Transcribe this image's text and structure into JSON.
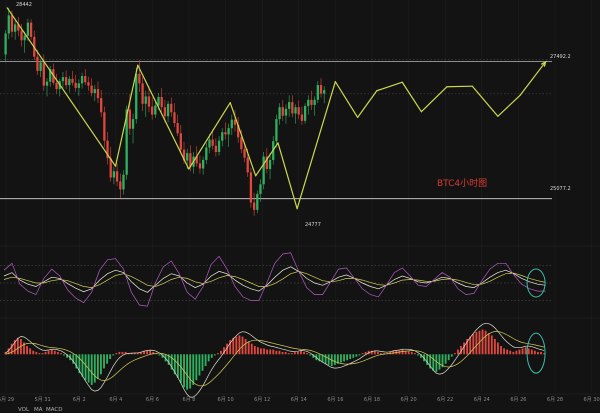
{
  "colors": {
    "background": "#131313",
    "up_candle": "#2fb15f",
    "down_candle": "#e0483e",
    "pattern_line": "#ccd94a",
    "support_resistance": "#d8d8d8",
    "macd_dif": "#e0e0d0",
    "macd_dea": "#d5cf5a",
    "kdj_k": "#f0f0e0",
    "kdj_d": "#d5cf5a",
    "kdj_j": "#b45cc4",
    "hist_up": "#e0483e",
    "hist_down": "#2fb15f",
    "annotation_circle": "#3cbca4",
    "watermark": "#d83a36"
  },
  "watermark": "BTC4小时图",
  "price_labels": {
    "high": "28442",
    "resistance": "27492.2",
    "support": "25077.2",
    "low": "24777"
  },
  "bottom_tabs": [
    "VOL",
    "MA",
    "MACD"
  ],
  "chart_data": {
    "type": "candlestick",
    "title": "",
    "x_ticks": [
      "5月 29",
      "5月 31",
      "6月 2",
      "6月 4",
      "6月 6",
      "6月 8",
      "6月 10",
      "6月 12",
      "6月 14",
      "6月 16",
      "6月 18",
      "6月 20",
      "6月 22",
      "6月 24",
      "6月 26",
      "6月 28",
      "6月 30"
    ],
    "ylim": [
      24560,
      28580
    ],
    "levels": {
      "resistance": 27492.2,
      "support": 25077.2,
      "dotted": [
        27530,
        26925
      ]
    },
    "marked_extremes": {
      "high": 28442,
      "low": 24777
    },
    "ohlc": [
      [
        27620,
        28050,
        27480,
        27990
      ],
      [
        27990,
        28442,
        27890,
        28310
      ],
      [
        28310,
        28390,
        27920,
        28020
      ],
      [
        28020,
        28220,
        27880,
        28150
      ],
      [
        28150,
        28280,
        27940,
        28040
      ],
      [
        28040,
        28160,
        27760,
        27870
      ],
      [
        27870,
        28020,
        27650,
        27950
      ],
      [
        27950,
        28250,
        27860,
        28180
      ],
      [
        28180,
        28240,
        27880,
        27930
      ],
      [
        27930,
        28040,
        27520,
        27580
      ],
      [
        27580,
        27700,
        27260,
        27330
      ],
      [
        27330,
        27540,
        27220,
        27480
      ],
      [
        27480,
        27620,
        26980,
        27070
      ],
      [
        27070,
        27200,
        26880,
        27140
      ],
      [
        27140,
        27420,
        27050,
        27360
      ],
      [
        27360,
        27460,
        27080,
        27120
      ],
      [
        27120,
        27280,
        26930,
        27010
      ],
      [
        27010,
        27190,
        26880,
        27150
      ],
      [
        27150,
        27310,
        27030,
        27220
      ],
      [
        27220,
        27340,
        27010,
        27080
      ],
      [
        27080,
        27240,
        26950,
        27190
      ],
      [
        27190,
        27330,
        27070,
        27120
      ],
      [
        27120,
        27260,
        26960,
        27030
      ],
      [
        27030,
        27180,
        26890,
        27110
      ],
      [
        27110,
        27300,
        27020,
        27240
      ],
      [
        27240,
        27360,
        27080,
        27130
      ],
      [
        27130,
        27230,
        26980,
        27070
      ],
      [
        27070,
        27200,
        26880,
        26940
      ],
      [
        26940,
        27080,
        26800,
        27010
      ],
      [
        27010,
        27140,
        26760,
        26850
      ],
      [
        26850,
        26990,
        26520,
        26600
      ],
      [
        26600,
        26700,
        25980,
        26100
      ],
      [
        26100,
        26250,
        25680,
        25790
      ],
      [
        25790,
        25990,
        25380,
        25450
      ],
      [
        25450,
        25640,
        25330,
        25560
      ],
      [
        25560,
        25700,
        25300,
        25380
      ],
      [
        25380,
        25520,
        25080,
        25240
      ],
      [
        25240,
        25580,
        25150,
        25500
      ],
      [
        25500,
        26720,
        25410,
        26650
      ],
      [
        26650,
        26930,
        26200,
        26310
      ],
      [
        26310,
        26580,
        26050,
        26480
      ],
      [
        26480,
        27380,
        26400,
        27280
      ],
      [
        27280,
        27520,
        26960,
        27110
      ],
      [
        27110,
        27230,
        26620,
        26750
      ],
      [
        26750,
        26980,
        26520,
        26880
      ],
      [
        26880,
        27060,
        26600,
        26700
      ],
      [
        26700,
        26860,
        26470,
        26560
      ],
      [
        26560,
        26780,
        26500,
        26720
      ],
      [
        26720,
        26940,
        26640,
        26870
      ],
      [
        26870,
        27030,
        26610,
        26690
      ],
      [
        26690,
        26820,
        26420,
        26530
      ],
      [
        26530,
        26800,
        26420,
        26750
      ],
      [
        26750,
        26860,
        26520,
        26600
      ],
      [
        26600,
        26760,
        26340,
        26410
      ],
      [
        26410,
        26560,
        26180,
        26230
      ],
      [
        26230,
        26380,
        25860,
        25940
      ],
      [
        25940,
        26080,
        25690,
        25750
      ],
      [
        25750,
        25960,
        25600,
        25880
      ],
      [
        25880,
        26020,
        25560,
        25640
      ],
      [
        25640,
        25900,
        25520,
        25820
      ],
      [
        25820,
        26000,
        25640,
        25700
      ],
      [
        25700,
        25840,
        25520,
        25610
      ],
      [
        25610,
        25820,
        25500,
        25760
      ],
      [
        25760,
        26060,
        25690,
        25980
      ],
      [
        25980,
        26220,
        25880,
        26120
      ],
      [
        26120,
        26300,
        25940,
        26010
      ],
      [
        26010,
        26140,
        25820,
        25900
      ],
      [
        25900,
        26180,
        25840,
        26100
      ],
      [
        26100,
        26320,
        26000,
        26250
      ],
      [
        26250,
        26420,
        26120,
        26210
      ],
      [
        26210,
        26400,
        25990,
        26320
      ],
      [
        26320,
        26560,
        26200,
        26470
      ],
      [
        26470,
        26640,
        26260,
        26380
      ],
      [
        26380,
        26520,
        26060,
        26160
      ],
      [
        26160,
        26290,
        25880,
        25950
      ],
      [
        25950,
        26060,
        25720,
        25800
      ],
      [
        25800,
        25960,
        25460,
        25540
      ],
      [
        25540,
        25620,
        24920,
        25010
      ],
      [
        25010,
        25180,
        24777,
        24880
      ],
      [
        24880,
        25220,
        24820,
        25160
      ],
      [
        25160,
        25420,
        25020,
        25330
      ],
      [
        25330,
        25900,
        25240,
        25820
      ],
      [
        25820,
        25970,
        25520,
        25600
      ],
      [
        25600,
        25880,
        25420,
        25760
      ],
      [
        25760,
        26180,
        25680,
        26090
      ],
      [
        26090,
        26560,
        25980,
        26480
      ],
      [
        26480,
        26760,
        26380,
        26690
      ],
      [
        26690,
        26820,
        26450,
        26540
      ],
      [
        26540,
        26740,
        26400,
        26660
      ],
      [
        26660,
        26900,
        26520,
        26780
      ],
      [
        26780,
        26900,
        26510,
        26580
      ],
      [
        26580,
        26740,
        26400,
        26690
      ],
      [
        26690,
        26810,
        26480,
        26560
      ],
      [
        26560,
        26700,
        26380,
        26450
      ],
      [
        26450,
        26760,
        26400,
        26710
      ],
      [
        26710,
        26900,
        26560,
        26820
      ],
      [
        26820,
        26980,
        26640,
        26730
      ],
      [
        26730,
        26880,
        26540,
        26820
      ],
      [
        26820,
        27150,
        26760,
        27080
      ],
      [
        27080,
        27200,
        26860,
        26930
      ],
      [
        26930,
        27060,
        26760,
        26990
      ]
    ],
    "pattern_path": [
      {
        "x": 1,
        "y": 28442
      },
      {
        "x": 35,
        "y": 25650
      },
      {
        "x": 42,
        "y": 27430
      },
      {
        "x": 58,
        "y": 25600
      },
      {
        "x": 71,
        "y": 26770
      },
      {
        "x": 79,
        "y": 25480
      },
      {
        "x": 86,
        "y": 26060
      },
      {
        "x": 92,
        "y": 24900
      },
      {
        "x": 104,
        "y": 27140
      },
      {
        "x": 111,
        "y": 26510
      },
      {
        "x": 117,
        "y": 26980
      },
      {
        "x": 125,
        "y": 27130
      },
      {
        "x": 131,
        "y": 26610
      },
      {
        "x": 139,
        "y": 27050
      },
      {
        "x": 147,
        "y": 27060
      },
      {
        "x": 155,
        "y": 26530
      },
      {
        "x": 162,
        "y": 26900
      },
      {
        "x": 170,
        "y": 27490
      }
    ],
    "pattern_scale": {
      "x_max": 172
    },
    "kdj_panel": {
      "series": [
        {
          "key": "k",
          "values": [
            62,
            68,
            55,
            48,
            44,
            52,
            60,
            58,
            49,
            41,
            35,
            40,
            55,
            66,
            72,
            68,
            52,
            40,
            34,
            46,
            58,
            66,
            62,
            50,
            42,
            48,
            62,
            70,
            66,
            55,
            46,
            40,
            36,
            46,
            60,
            72,
            78,
            70,
            58,
            50,
            46,
            52,
            60,
            64,
            58,
            50,
            44,
            40,
            46,
            56,
            62,
            58,
            52,
            50,
            54,
            60,
            58,
            50,
            44,
            42,
            50,
            60,
            68,
            72,
            66,
            58,
            52,
            48,
            46
          ]
        },
        {
          "key": "d",
          "values": [
            56,
            60,
            58,
            54,
            50,
            50,
            54,
            56,
            54,
            49,
            44,
            42,
            47,
            55,
            63,
            66,
            61,
            54,
            46,
            44,
            49,
            56,
            60,
            58,
            52,
            49,
            53,
            59,
            63,
            61,
            56,
            50,
            44,
            44,
            49,
            57,
            66,
            70,
            66,
            60,
            54,
            52,
            54,
            58,
            58,
            55,
            51,
            47,
            46,
            50,
            55,
            56,
            55,
            53,
            53,
            56,
            57,
            55,
            51,
            47,
            48,
            53,
            60,
            66,
            67,
            63,
            58,
            54,
            51
          ]
        },
        {
          "key": "j",
          "values": [
            72,
            84,
            48,
            36,
            30,
            58,
            74,
            62,
            38,
            24,
            16,
            34,
            72,
            90,
            92,
            74,
            34,
            12,
            10,
            50,
            78,
            88,
            66,
            34,
            22,
            44,
            82,
            96,
            74,
            44,
            26,
            20,
            20,
            50,
            84,
            100,
            102,
            70,
            42,
            30,
            30,
            52,
            74,
            76,
            58,
            40,
            30,
            26,
            46,
            68,
            76,
            62,
            46,
            44,
            56,
            68,
            60,
            40,
            30,
            32,
            54,
            74,
            84,
            84,
            64,
            48,
            40,
            36,
            36
          ]
        }
      ],
      "range": [
        0,
        100
      ],
      "reference_lines": [
        80,
        50,
        20
      ]
    },
    "macd_panel": {
      "histogram": [
        2,
        5,
        9,
        12,
        14,
        13,
        10,
        7,
        5,
        3,
        2,
        1,
        1,
        2,
        3,
        4,
        3,
        2,
        1,
        -1,
        -3,
        -5,
        -8,
        -12,
        -16,
        -19,
        -22,
        -24,
        -26,
        -24,
        -21,
        -17,
        -12,
        -8,
        -4,
        -1,
        1,
        2,
        2,
        2,
        1,
        1,
        1,
        1,
        2,
        3,
        3,
        3,
        2,
        1,
        -1,
        -3,
        -6,
        -9,
        -13,
        -17,
        -20,
        -24,
        -28,
        -30,
        -29,
        -26,
        -22,
        -18,
        -14,
        -10,
        -6,
        -3,
        -1,
        1,
        3,
        6,
        9,
        12,
        14,
        15,
        16,
        15,
        13,
        11,
        9,
        7,
        6,
        5,
        5,
        4,
        4,
        4,
        3,
        3,
        2,
        2,
        1,
        1,
        2,
        2,
        3,
        2,
        1,
        -1,
        -3,
        -5,
        -6,
        -7,
        -8,
        -9,
        -10,
        -9,
        -8,
        -7,
        -6,
        -5,
        -4,
        -3,
        -2,
        -1,
        1,
        2,
        3,
        3,
        3,
        2,
        1,
        1,
        1,
        2,
        3,
        3,
        3,
        4,
        3,
        3,
        2,
        1,
        -1,
        -3,
        -6,
        -9,
        -12,
        -14,
        -15,
        -13,
        -11,
        -8,
        -5,
        -2,
        1,
        4,
        7,
        10,
        13,
        15,
        17,
        19,
        20,
        21,
        20,
        18,
        16,
        13,
        10,
        7,
        5,
        4,
        3,
        2,
        3,
        4,
        5,
        6,
        5,
        4,
        3,
        2,
        2,
        1
      ],
      "range": [
        -32,
        24
      ],
      "zero_line": 0,
      "dif_smoothing": 0.35,
      "dea_smoothing": 0.18
    },
    "annotations": [
      {
        "panel": "kdj",
        "shape": "ellipse",
        "x": 167,
        "value": 50
      },
      {
        "panel": "macd",
        "shape": "ellipse",
        "x": 167,
        "value": 1
      }
    ]
  }
}
